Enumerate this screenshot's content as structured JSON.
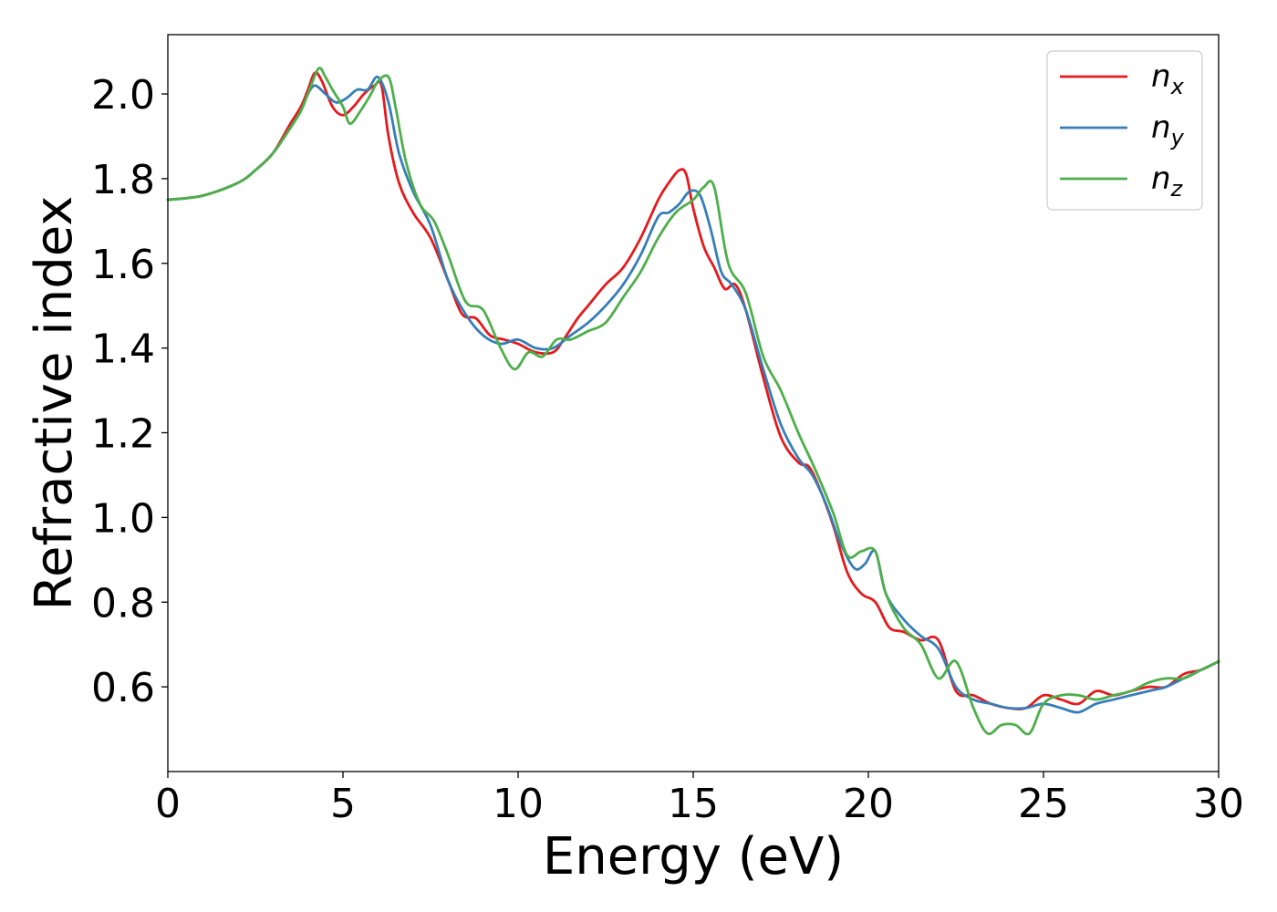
{
  "chart_data": {
    "type": "line",
    "title": "",
    "xlabel": "Energy (eV)",
    "ylabel": "Refractive index",
    "xlim": [
      0,
      30
    ],
    "ylim": [
      0.4,
      2.14
    ],
    "xticks": [
      0,
      5,
      10,
      15,
      20,
      25,
      30
    ],
    "yticks": [
      0.6,
      0.8,
      1.0,
      1.2,
      1.4,
      1.6,
      1.8,
      2.0
    ],
    "xtick_labels": [
      "0",
      "5",
      "10",
      "15",
      "20",
      "25",
      "30"
    ],
    "ytick_labels": [
      "0.6",
      "0.8",
      "1.0",
      "1.2",
      "1.4",
      "1.6",
      "1.8",
      "2.0"
    ],
    "grid": false,
    "legend_position": "top-right",
    "series": [
      {
        "name": "n",
        "subscript": "x",
        "color": "#e41a1c",
        "x": [
          0,
          1,
          2,
          2.5,
          3,
          3.5,
          3.8,
          4.0,
          4.2,
          4.4,
          4.7,
          5.0,
          5.3,
          5.6,
          5.9,
          6.1,
          6.3,
          6.6,
          7.0,
          7.5,
          8.0,
          8.4,
          8.8,
          9.2,
          9.6,
          10.0,
          10.5,
          11.0,
          11.3,
          11.7,
          12.0,
          12.5,
          13.0,
          13.5,
          14.0,
          14.3,
          14.6,
          14.8,
          15.0,
          15.3,
          15.6,
          15.9,
          16.2,
          16.5,
          17.0,
          17.5,
          18.0,
          18.3,
          18.6,
          19.0,
          19.4,
          19.8,
          20.2,
          20.6,
          21.0,
          21.5,
          22.0,
          22.5,
          23.0,
          23.5,
          24.0,
          24.5,
          25.0,
          25.5,
          26.0,
          26.5,
          27.0,
          27.5,
          28.0,
          28.5,
          29.0,
          29.5,
          30.0
        ],
        "y": [
          1.75,
          1.76,
          1.79,
          1.82,
          1.86,
          1.93,
          1.97,
          2.01,
          2.05,
          2.03,
          1.97,
          1.95,
          1.97,
          2.0,
          2.02,
          2.02,
          1.9,
          1.79,
          1.72,
          1.66,
          1.56,
          1.48,
          1.47,
          1.43,
          1.42,
          1.41,
          1.39,
          1.39,
          1.42,
          1.47,
          1.5,
          1.55,
          1.59,
          1.66,
          1.75,
          1.79,
          1.82,
          1.81,
          1.73,
          1.64,
          1.59,
          1.54,
          1.55,
          1.49,
          1.33,
          1.19,
          1.13,
          1.12,
          1.07,
          0.98,
          0.87,
          0.82,
          0.8,
          0.74,
          0.73,
          0.71,
          0.71,
          0.59,
          0.58,
          0.56,
          0.55,
          0.55,
          0.58,
          0.57,
          0.56,
          0.59,
          0.58,
          0.59,
          0.6,
          0.6,
          0.63,
          0.64,
          0.66
        ]
      },
      {
        "name": "n",
        "subscript": "y",
        "color": "#377eb8",
        "x": [
          0,
          1,
          2,
          2.5,
          3,
          3.5,
          3.8,
          4.0,
          4.2,
          4.5,
          4.8,
          5.1,
          5.4,
          5.7,
          6.0,
          6.3,
          6.6,
          7.0,
          7.5,
          8.0,
          8.5,
          9.0,
          9.5,
          10.0,
          10.5,
          11.0,
          11.5,
          12.0,
          12.5,
          13.0,
          13.5,
          14.0,
          14.3,
          14.6,
          14.9,
          15.2,
          15.5,
          15.8,
          16.1,
          16.5,
          17.0,
          17.5,
          18.0,
          18.4,
          18.8,
          19.2,
          19.6,
          19.9,
          20.2,
          20.5,
          21.0,
          21.5,
          22.0,
          22.5,
          23.0,
          23.5,
          24.0,
          24.5,
          25.0,
          25.5,
          26.0,
          26.5,
          27.0,
          27.5,
          28.0,
          28.5,
          29.0,
          29.5,
          30.0
        ],
        "y": [
          1.75,
          1.76,
          1.79,
          1.82,
          1.86,
          1.92,
          1.96,
          2.0,
          2.02,
          2.0,
          1.98,
          1.99,
          2.01,
          2.01,
          2.04,
          1.98,
          1.86,
          1.77,
          1.69,
          1.56,
          1.48,
          1.43,
          1.41,
          1.42,
          1.4,
          1.4,
          1.43,
          1.46,
          1.5,
          1.55,
          1.62,
          1.71,
          1.72,
          1.74,
          1.77,
          1.76,
          1.68,
          1.58,
          1.55,
          1.49,
          1.35,
          1.22,
          1.14,
          1.1,
          1.03,
          0.94,
          0.88,
          0.89,
          0.92,
          0.82,
          0.76,
          0.72,
          0.69,
          0.6,
          0.57,
          0.56,
          0.55,
          0.55,
          0.56,
          0.55,
          0.54,
          0.56,
          0.57,
          0.58,
          0.59,
          0.6,
          0.62,
          0.64,
          0.66
        ]
      },
      {
        "name": "n",
        "subscript": "z",
        "color": "#4daf4a",
        "x": [
          0,
          1,
          2,
          2.5,
          3,
          3.5,
          3.8,
          4.0,
          4.3,
          4.5,
          4.7,
          5.0,
          5.2,
          5.5,
          5.8,
          6.0,
          6.3,
          6.5,
          6.8,
          7.2,
          7.6,
          8.0,
          8.5,
          9.0,
          9.5,
          9.9,
          10.3,
          10.7,
          11.1,
          11.5,
          12.0,
          12.5,
          13.0,
          13.5,
          14.0,
          14.5,
          15.0,
          15.3,
          15.6,
          16.0,
          16.5,
          17.0,
          17.5,
          18.0,
          18.5,
          19.0,
          19.4,
          19.8,
          20.2,
          20.5,
          21.0,
          21.5,
          22.0,
          22.5,
          23.0,
          23.4,
          23.8,
          24.2,
          24.6,
          25.0,
          25.5,
          26.0,
          26.5,
          27.0,
          27.5,
          28.0,
          28.5,
          29.0,
          29.5,
          30.0
        ],
        "y": [
          1.75,
          1.76,
          1.79,
          1.82,
          1.86,
          1.92,
          1.96,
          2.0,
          2.06,
          2.04,
          2.01,
          1.97,
          1.93,
          1.96,
          2.0,
          2.03,
          2.04,
          1.97,
          1.84,
          1.74,
          1.7,
          1.62,
          1.51,
          1.49,
          1.4,
          1.35,
          1.39,
          1.38,
          1.42,
          1.42,
          1.44,
          1.46,
          1.52,
          1.58,
          1.66,
          1.72,
          1.75,
          1.78,
          1.78,
          1.6,
          1.53,
          1.38,
          1.3,
          1.2,
          1.11,
          1.01,
          0.91,
          0.92,
          0.92,
          0.82,
          0.74,
          0.7,
          0.62,
          0.66,
          0.55,
          0.49,
          0.51,
          0.51,
          0.49,
          0.56,
          0.58,
          0.58,
          0.57,
          0.58,
          0.59,
          0.61,
          0.62,
          0.62,
          0.64,
          0.66
        ]
      }
    ]
  }
}
